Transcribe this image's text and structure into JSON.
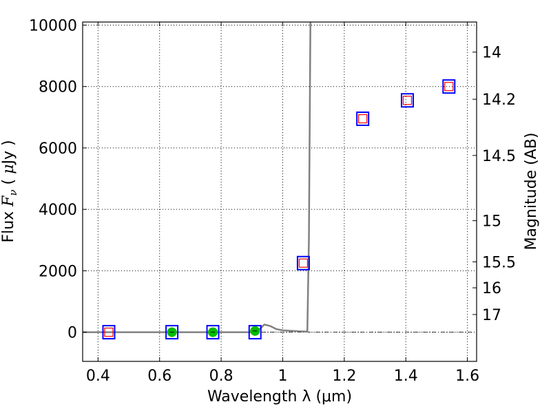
{
  "chart_data": {
    "type": "scatter",
    "title": "",
    "xlabel": "Wavelength  λ (μm)",
    "ylabel_prefix": "Flux",
    "ylabel_math": "F",
    "ylabel_sub": "ν",
    "ylabel_unit_open": "( ",
    "ylabel_unit_mu": "μ",
    "ylabel_unit_rest": "Jy )",
    "ylabel_right": "Magnitude (AB)",
    "xlim": [
      0.35,
      1.63
    ],
    "ylim": [
      -950,
      10100
    ],
    "xticks": [
      {
        "value": 0.4,
        "label": "0.4"
      },
      {
        "value": 0.6,
        "label": "0.6"
      },
      {
        "value": 0.8,
        "label": "0.8"
      },
      {
        "value": 1.0,
        "label": "1"
      },
      {
        "value": 1.2,
        "label": "1.2"
      },
      {
        "value": 1.4,
        "label": "1.4"
      },
      {
        "value": 1.6,
        "label": "1.6"
      }
    ],
    "yticks": [
      {
        "value": 0,
        "label": "0"
      },
      {
        "value": 2000,
        "label": "2000"
      },
      {
        "value": 4000,
        "label": "4000"
      },
      {
        "value": 6000,
        "label": "6000"
      },
      {
        "value": 8000,
        "label": "8000"
      },
      {
        "value": 10000,
        "label": "10000"
      }
    ],
    "right_ticks": [
      {
        "value": 14,
        "label": "14"
      },
      {
        "value": 14.2,
        "label": "14.2"
      },
      {
        "value": 14.5,
        "label": "14.5"
      },
      {
        "value": 15,
        "label": "15"
      },
      {
        "value": 15.5,
        "label": "15.5"
      },
      {
        "value": 16,
        "label": "16"
      },
      {
        "value": 17,
        "label": "17"
      }
    ],
    "ab_zero_point_uJy": 3631000000,
    "grid": true,
    "series": [
      {
        "kind": "line",
        "color": "#808080",
        "x": [
          0.35,
          0.4,
          0.5,
          0.6,
          0.7,
          0.8,
          0.9,
          0.925,
          0.94,
          0.96,
          0.98,
          1.0,
          1.05,
          1.08,
          1.085,
          1.09
        ],
        "y": [
          0,
          0,
          0,
          0,
          0,
          0,
          0,
          100,
          250,
          200,
          100,
          60,
          30,
          20,
          3000,
          10100
        ]
      },
      {
        "kind": "square_marker",
        "edgecolor": "#0000ff",
        "x": [
          0.435,
          0.64,
          0.773,
          0.91,
          1.067,
          1.26,
          1.405,
          1.54
        ],
        "y": [
          0,
          0,
          0,
          0,
          2250,
          6950,
          7550,
          8000
        ]
      },
      {
        "kind": "circle_marker",
        "color": "#00bb00",
        "x": [
          0.64,
          0.773,
          0.91
        ],
        "y": [
          0,
          0,
          40
        ]
      },
      {
        "kind": "square_marker_small",
        "edgecolor": "#ff0000",
        "x": [
          0.435,
          1.067,
          1.26,
          1.405,
          1.54
        ],
        "y": [
          0,
          2250,
          6950,
          7550,
          8000
        ]
      }
    ]
  }
}
